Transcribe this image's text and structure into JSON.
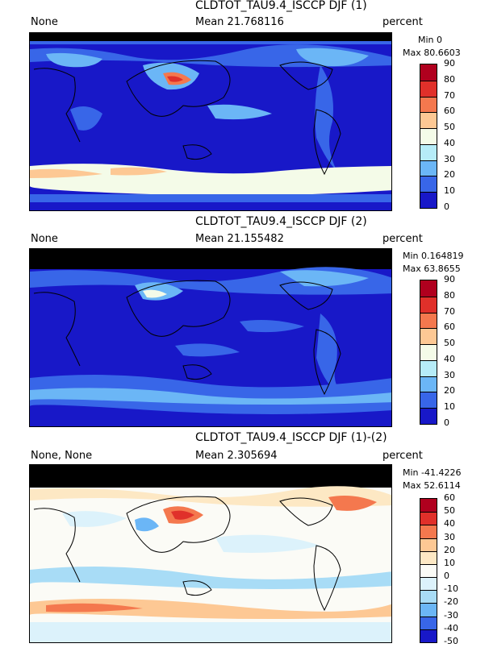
{
  "panels": [
    {
      "title": "CLDTOT_TAU9.4_ISCCP DJF (1)",
      "left_label": "None",
      "mean": "Mean 21.768116",
      "units": "percent",
      "min": "Min 0",
      "max": "Max 80.6603",
      "colorbar": {
        "ticks": [
          "90",
          "80",
          "70",
          "60",
          "50",
          "40",
          "30",
          "20",
          "10",
          "0"
        ],
        "colors": [
          "#b0001e",
          "#e0302a",
          "#f4784e",
          "#fdc894",
          "#f4fbe8",
          "#b6ecf8",
          "#6bb6f6",
          "#3866e8",
          "#1818c8"
        ]
      }
    },
    {
      "title": "CLDTOT_TAU9.4_ISCCP DJF (2)",
      "left_label": "None",
      "mean": "Mean 21.155482",
      "units": "percent",
      "min": "Min 0.164819",
      "max": "Max 63.8655",
      "colorbar": {
        "ticks": [
          "90",
          "80",
          "70",
          "60",
          "50",
          "40",
          "30",
          "20",
          "10",
          "0"
        ],
        "colors": [
          "#b0001e",
          "#e0302a",
          "#f4784e",
          "#fdc894",
          "#f4fbe8",
          "#b6ecf8",
          "#6bb6f6",
          "#3866e8",
          "#1818c8"
        ]
      }
    },
    {
      "title": "CLDTOT_TAU9.4_ISCCP DJF (1)-(2)",
      "left_label": "None, None",
      "mean": "Mean 2.305694",
      "units": "percent",
      "min": "Min -41.4226",
      "max": "Max 52.6114",
      "colorbar": {
        "ticks": [
          "60",
          "50",
          "40",
          "30",
          "20",
          "10",
          "0",
          "-10",
          "-20",
          "-30",
          "-40",
          "-50"
        ],
        "colors": [
          "#b0001e",
          "#e0302a",
          "#f4784e",
          "#fdc894",
          "#fde8c4",
          "#fbfbf6",
          "#dcf2fb",
          "#a8dcf6",
          "#6bb6f6",
          "#3866e8",
          "#1818c8"
        ]
      }
    }
  ],
  "chart_data": [
    {
      "type": "heatmap",
      "title": "CLDTOT_TAU9.4_ISCCP DJF (1)",
      "variable_label": "None",
      "units": "percent",
      "mean": 21.768116,
      "min": 0,
      "max": 80.6603,
      "color_levels": [
        0,
        10,
        20,
        30,
        40,
        50,
        60,
        70,
        80,
        90
      ]
    },
    {
      "type": "heatmap",
      "title": "CLDTOT_TAU9.4_ISCCP DJF (2)",
      "variable_label": "None",
      "units": "percent",
      "mean": 21.155482,
      "min": 0.164819,
      "max": 63.8655,
      "color_levels": [
        0,
        10,
        20,
        30,
        40,
        50,
        60,
        70,
        80,
        90
      ]
    },
    {
      "type": "heatmap",
      "title": "CLDTOT_TAU9.4_ISCCP DJF (1)-(2)",
      "variable_label": "None, None",
      "units": "percent",
      "mean": 2.305694,
      "min": -41.4226,
      "max": 52.6114,
      "color_levels": [
        -50,
        -40,
        -30,
        -20,
        -10,
        0,
        10,
        20,
        30,
        40,
        50,
        60
      ]
    }
  ]
}
